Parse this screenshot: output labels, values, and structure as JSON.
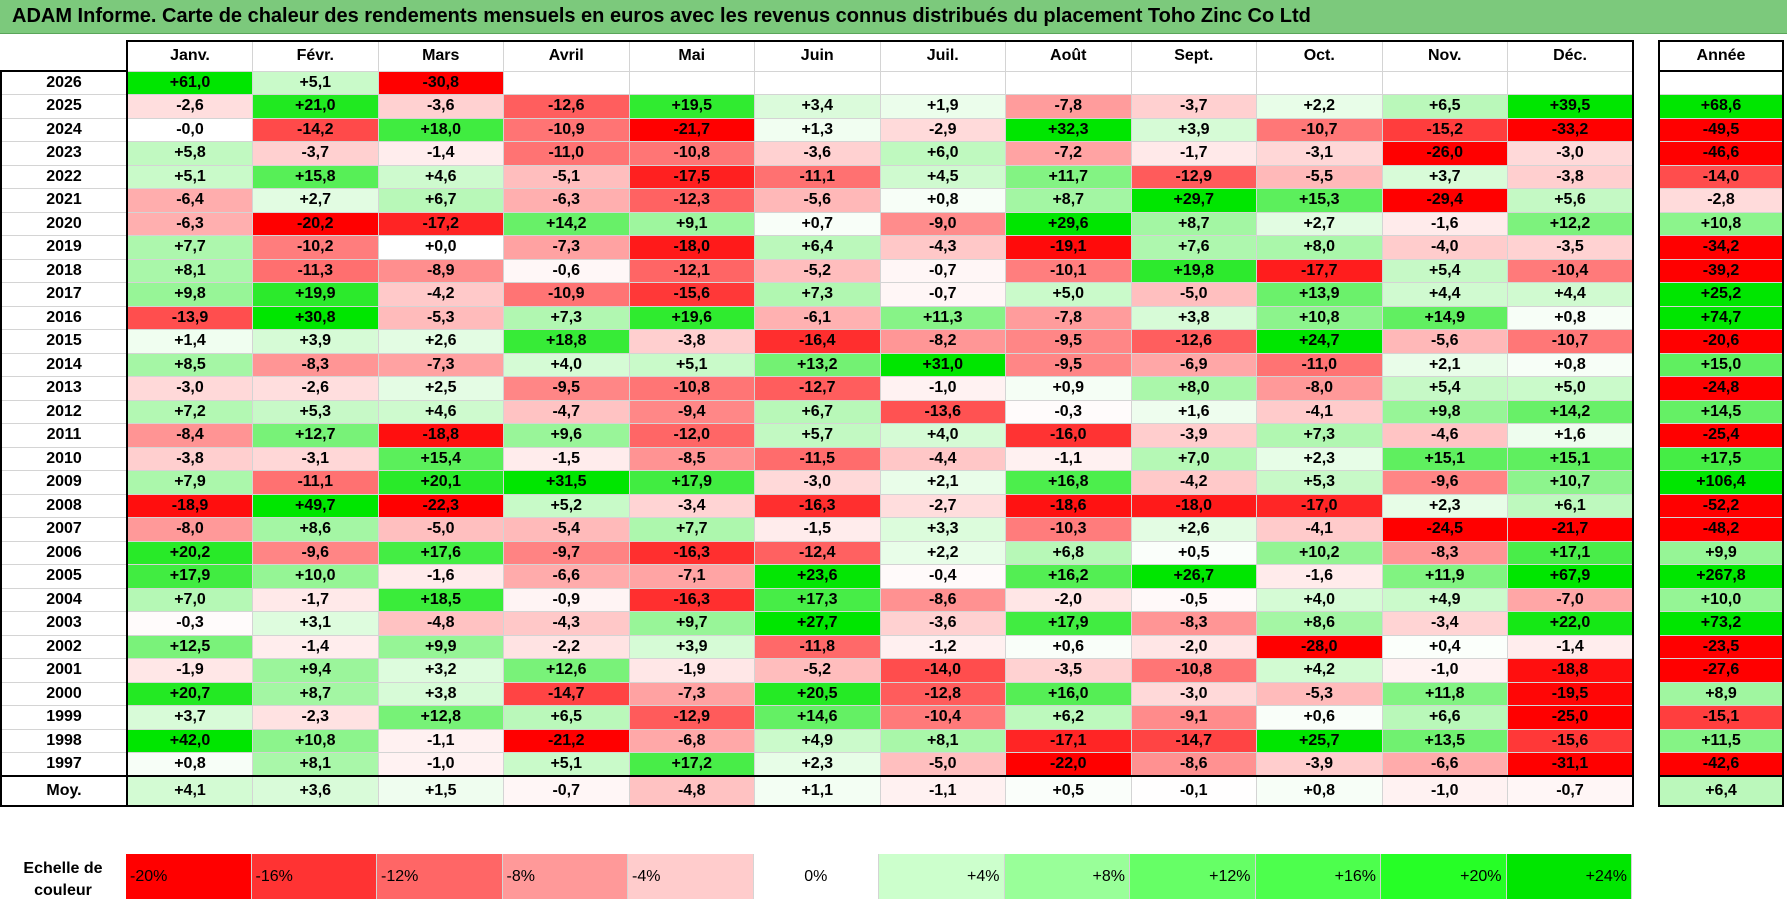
{
  "title": "ADAM Informe. Carte de chaleur des rendements mensuels en euros avec les revenus connus distribués du placement Toho Zinc Co Ltd",
  "chart_data": {
    "type": "heatmap",
    "title": "ADAM Informe. Carte de chaleur des rendements mensuels en euros avec les revenus connus distribués du placement Toho Zinc Co Ltd",
    "months": [
      "Janv.",
      "Févr.",
      "Mars",
      "Avril",
      "Mai",
      "Juin",
      "Juil.",
      "Août",
      "Sept.",
      "Oct.",
      "Nov.",
      "Déc."
    ],
    "year_header": "Année",
    "rows": [
      {
        "year": "2026",
        "values": [
          "+61,0",
          "+5,1",
          "-30,8",
          "",
          "",
          "",
          "",
          "",
          "",
          "",
          "",
          ""
        ],
        "annual": ""
      },
      {
        "year": "2025",
        "values": [
          "-2,6",
          "+21,0",
          "-3,6",
          "-12,6",
          "+19,5",
          "+3,4",
          "+1,9",
          "-7,8",
          "-3,7",
          "+2,2",
          "+6,5",
          "+39,5"
        ],
        "annual": "+68,6"
      },
      {
        "year": "2024",
        "values": [
          "-0,0",
          "-14,2",
          "+18,0",
          "-10,9",
          "-21,7",
          "+1,3",
          "-2,9",
          "+32,3",
          "+3,9",
          "-10,7",
          "-15,2",
          "-33,2"
        ],
        "annual": "-49,5"
      },
      {
        "year": "2023",
        "values": [
          "+5,8",
          "-3,7",
          "-1,4",
          "-11,0",
          "-10,8",
          "-3,6",
          "+6,0",
          "-7,2",
          "-1,7",
          "-3,1",
          "-26,0",
          "-3,0"
        ],
        "annual": "-46,6"
      },
      {
        "year": "2022",
        "values": [
          "+5,1",
          "+15,8",
          "+4,6",
          "-5,1",
          "-17,5",
          "-11,1",
          "+4,5",
          "+11,7",
          "-12,9",
          "-5,5",
          "+3,7",
          "-3,8"
        ],
        "annual": "-14,0"
      },
      {
        "year": "2021",
        "values": [
          "-6,4",
          "+2,7",
          "+6,7",
          "-6,3",
          "-12,3",
          "-5,6",
          "+0,8",
          "+8,7",
          "+29,7",
          "+15,3",
          "-29,4",
          "+5,6"
        ],
        "annual": "-2,8"
      },
      {
        "year": "2020",
        "values": [
          "-6,3",
          "-20,2",
          "-17,2",
          "+14,2",
          "+9,1",
          "+0,7",
          "-9,0",
          "+29,6",
          "+8,7",
          "+2,7",
          "-1,6",
          "+12,2"
        ],
        "annual": "+10,8"
      },
      {
        "year": "2019",
        "values": [
          "+7,7",
          "-10,2",
          "+0,0",
          "-7,3",
          "-18,0",
          "+6,4",
          "-4,3",
          "-19,1",
          "+7,6",
          "+8,0",
          "-4,0",
          "-3,5"
        ],
        "annual": "-34,2"
      },
      {
        "year": "2018",
        "values": [
          "+8,1",
          "-11,3",
          "-8,9",
          "-0,6",
          "-12,1",
          "-5,2",
          "-0,7",
          "-10,1",
          "+19,8",
          "-17,7",
          "+5,4",
          "-10,4"
        ],
        "annual": "-39,2"
      },
      {
        "year": "2017",
        "values": [
          "+9,8",
          "+19,9",
          "-4,2",
          "-10,9",
          "-15,6",
          "+7,3",
          "-0,7",
          "+5,0",
          "-5,0",
          "+13,9",
          "+4,4",
          "+4,4"
        ],
        "annual": "+25,2"
      },
      {
        "year": "2016",
        "values": [
          "-13,9",
          "+30,8",
          "-5,3",
          "+7,3",
          "+19,6",
          "-6,1",
          "+11,3",
          "-7,8",
          "+3,8",
          "+10,8",
          "+14,9",
          "+0,8"
        ],
        "annual": "+74,7"
      },
      {
        "year": "2015",
        "values": [
          "+1,4",
          "+3,9",
          "+2,6",
          "+18,8",
          "-3,8",
          "-16,4",
          "-8,2",
          "-9,5",
          "-12,6",
          "+24,7",
          "-5,6",
          "-10,7"
        ],
        "annual": "-20,6"
      },
      {
        "year": "2014",
        "values": [
          "+8,5",
          "-8,3",
          "-7,3",
          "+4,0",
          "+5,1",
          "+13,2",
          "+31,0",
          "-9,5",
          "-6,9",
          "-11,0",
          "+2,1",
          "+0,8"
        ],
        "annual": "+15,0"
      },
      {
        "year": "2013",
        "values": [
          "-3,0",
          "-2,6",
          "+2,5",
          "-9,5",
          "-10,8",
          "-12,7",
          "-1,0",
          "+0,9",
          "+8,0",
          "-8,0",
          "+5,4",
          "+5,0"
        ],
        "annual": "-24,8"
      },
      {
        "year": "2012",
        "values": [
          "+7,2",
          "+5,3",
          "+4,6",
          "-4,7",
          "-9,4",
          "+6,7",
          "-13,6",
          "-0,3",
          "+1,6",
          "-4,1",
          "+9,8",
          "+14,2"
        ],
        "annual": "+14,5"
      },
      {
        "year": "2011",
        "values": [
          "-8,4",
          "+12,7",
          "-18,8",
          "+9,6",
          "-12,0",
          "+5,7",
          "+4,0",
          "-16,0",
          "-3,9",
          "+7,3",
          "-4,6",
          "+1,6"
        ],
        "annual": "-25,4"
      },
      {
        "year": "2010",
        "values": [
          "-3,8",
          "-3,1",
          "+15,4",
          "-1,5",
          "-8,5",
          "-11,5",
          "-4,4",
          "-1,1",
          "+7,0",
          "+2,3",
          "+15,1",
          "+15,1"
        ],
        "annual": "+17,5"
      },
      {
        "year": "2009",
        "values": [
          "+7,9",
          "-11,1",
          "+20,1",
          "+31,5",
          "+17,9",
          "-3,0",
          "+2,1",
          "+16,8",
          "-4,2",
          "+5,3",
          "-9,6",
          "+10,7"
        ],
        "annual": "+106,4"
      },
      {
        "year": "2008",
        "values": [
          "-18,9",
          "+49,7",
          "-22,3",
          "+5,2",
          "-3,4",
          "-16,3",
          "-2,7",
          "-18,6",
          "-18,0",
          "-17,0",
          "+2,3",
          "+6,1"
        ],
        "annual": "-52,2"
      },
      {
        "year": "2007",
        "values": [
          "-8,0",
          "+8,6",
          "-5,0",
          "-5,4",
          "+7,7",
          "-1,5",
          "+3,3",
          "-10,3",
          "+2,6",
          "-4,1",
          "-24,5",
          "-21,7"
        ],
        "annual": "-48,2"
      },
      {
        "year": "2006",
        "values": [
          "+20,2",
          "-9,6",
          "+17,6",
          "-9,7",
          "-16,3",
          "-12,4",
          "+2,2",
          "+6,8",
          "+0,5",
          "+10,2",
          "-8,3",
          "+17,1"
        ],
        "annual": "+9,9"
      },
      {
        "year": "2005",
        "values": [
          "+17,9",
          "+10,0",
          "-1,6",
          "-6,6",
          "-7,1",
          "+23,6",
          "-0,4",
          "+16,2",
          "+26,7",
          "-1,6",
          "+11,9",
          "+67,9"
        ],
        "annual": "+267,8"
      },
      {
        "year": "2004",
        "values": [
          "+7,0",
          "-1,7",
          "+18,5",
          "-0,9",
          "-16,3",
          "+17,3",
          "-8,6",
          "-2,0",
          "-0,5",
          "+4,0",
          "+4,9",
          "-7,0"
        ],
        "annual": "+10,0"
      },
      {
        "year": "2003",
        "values": [
          "-0,3",
          "+3,1",
          "-4,8",
          "-4,3",
          "+9,7",
          "+27,7",
          "-3,6",
          "+17,9",
          "-8,3",
          "+8,6",
          "-3,4",
          "+22,0"
        ],
        "annual": "+73,2"
      },
      {
        "year": "2002",
        "values": [
          "+12,5",
          "-1,4",
          "+9,9",
          "-2,2",
          "+3,9",
          "-11,8",
          "-1,2",
          "+0,6",
          "-2,0",
          "-28,0",
          "+0,4",
          "-1,4"
        ],
        "annual": "-23,5"
      },
      {
        "year": "2001",
        "values": [
          "-1,9",
          "+9,4",
          "+3,2",
          "+12,6",
          "-1,9",
          "-5,2",
          "-14,0",
          "-3,5",
          "-10,8",
          "+4,2",
          "-1,0",
          "-18,8"
        ],
        "annual": "-27,6"
      },
      {
        "year": "2000",
        "values": [
          "+20,7",
          "+8,7",
          "+3,8",
          "-14,7",
          "-7,3",
          "+20,5",
          "-12,8",
          "+16,0",
          "-3,0",
          "-5,3",
          "+11,8",
          "-19,5"
        ],
        "annual": "+8,9"
      },
      {
        "year": "1999",
        "values": [
          "+3,7",
          "-2,3",
          "+12,8",
          "+6,5",
          "-12,9",
          "+14,6",
          "-10,4",
          "+6,2",
          "-9,1",
          "+0,6",
          "+6,6",
          "-25,0"
        ],
        "annual": "-15,1"
      },
      {
        "year": "1998",
        "values": [
          "+42,0",
          "+10,8",
          "-1,1",
          "-21,2",
          "-6,8",
          "+4,9",
          "+8,1",
          "-17,1",
          "-14,7",
          "+25,7",
          "+13,5",
          "-15,6"
        ],
        "annual": "+11,5"
      },
      {
        "year": "1997",
        "values": [
          "+0,8",
          "+8,1",
          "-1,0",
          "+5,1",
          "+17,2",
          "+2,3",
          "-5,0",
          "-22,0",
          "-8,6",
          "-3,9",
          "-6,6",
          "-31,1"
        ],
        "annual": "-42,6"
      }
    ],
    "average": {
      "label": "Moy.",
      "values": [
        "+4,1",
        "+3,6",
        "+1,5",
        "-0,7",
        "-4,8",
        "+1,1",
        "-1,1",
        "+0,5",
        "-0,1",
        "+0,8",
        "-1,0",
        "-0,7"
      ],
      "annual": "+6,4"
    },
    "color_scale": {
      "label_line1": "Echelle de",
      "label_line2": "couleur",
      "stops": [
        {
          "label": "-20%",
          "value": -20,
          "color": "#ff0000"
        },
        {
          "label": "-16%",
          "value": -16,
          "color": "#ff3333"
        },
        {
          "label": "-12%",
          "value": -12,
          "color": "#ff6666"
        },
        {
          "label": "-8%",
          "value": -8,
          "color": "#ff9999"
        },
        {
          "label": "-4%",
          "value": -4,
          "color": "#ffcccc"
        },
        {
          "label": "0%",
          "value": 0,
          "color": "#ffffff"
        },
        {
          "label": "+4%",
          "value": 4,
          "color": "#ccffcc"
        },
        {
          "label": "+8%",
          "value": 8,
          "color": "#99ff99"
        },
        {
          "label": "+12%",
          "value": 12,
          "color": "#66ff66"
        },
        {
          "label": "+16%",
          "value": 16,
          "color": "#4dff4d"
        },
        {
          "label": "+20%",
          "value": 20,
          "color": "#26ff26"
        },
        {
          "label": "+24%",
          "value": 24,
          "color": "#00e600"
        }
      ]
    }
  }
}
